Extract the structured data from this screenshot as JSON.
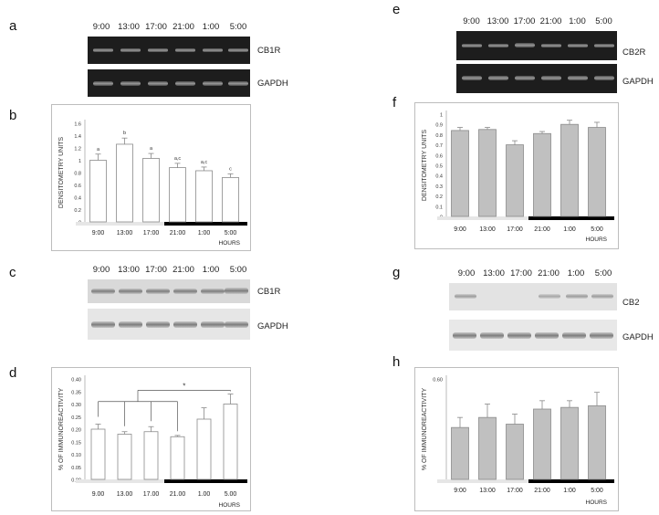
{
  "panels": {
    "a": {
      "letter": "a",
      "times": [
        "9:00",
        "13:00",
        "17:00",
        "21:00",
        "1:00",
        "5:00"
      ],
      "labels": [
        "CB1R",
        "GAPDH"
      ]
    },
    "e": {
      "letter": "e",
      "times": [
        "9:00",
        "13:00",
        "17:00",
        "21:00",
        "1:00",
        "5:00"
      ],
      "labels": [
        "CB2R",
        "GAPDH"
      ]
    },
    "c": {
      "letter": "c",
      "times": [
        "9:00",
        "13:00",
        "17:00",
        "21:00",
        "1:00",
        "5:00"
      ],
      "labels": [
        "CB1R",
        "GAPDH"
      ]
    },
    "g": {
      "letter": "g",
      "times": [
        "9:00",
        "13:00",
        "17:00",
        "21:00",
        "1:00",
        "5:00"
      ],
      "labels": [
        "CB2",
        "GAPDH"
      ]
    },
    "b": {
      "letter": "b"
    },
    "f": {
      "letter": "f"
    },
    "d": {
      "letter": "d"
    },
    "h": {
      "letter": "h"
    }
  },
  "chart_data": [
    {
      "id": "b",
      "type": "bar",
      "categories": [
        "9:00",
        "13:00",
        "17:00",
        "21:00",
        "1:00",
        "5:00"
      ],
      "values": [
        1.0,
        1.26,
        1.03,
        0.88,
        0.83,
        0.72
      ],
      "errors": [
        0.1,
        0.1,
        0.08,
        0.07,
        0.06,
        0.06
      ],
      "annotations": [
        "a",
        "b",
        "a",
        "a,c",
        "a,c",
        "c"
      ],
      "yticks": [
        "0",
        "0.2",
        "0.4",
        "0.6",
        "0.8",
        "1",
        "1.2",
        "1.4",
        "1.6"
      ],
      "ylim": [
        0,
        1.6
      ],
      "ylabel": "DENSITOMETRY UNITS",
      "xlabel": "HOURS",
      "bar_color": "#ffffff"
    },
    {
      "id": "f",
      "type": "bar",
      "categories": [
        "9:00",
        "13:00",
        "17:00",
        "21:00",
        "1:00",
        "5:00"
      ],
      "values": [
        0.84,
        0.85,
        0.7,
        0.81,
        0.9,
        0.87
      ],
      "errors": [
        0.03,
        0.02,
        0.04,
        0.02,
        0.04,
        0.05
      ],
      "annotations": [],
      "yticks": [
        "0",
        "0.1",
        "0.2",
        "0.3",
        "0.4",
        "0.5",
        "0.6",
        "0.7",
        "0.8",
        "0.9",
        "1"
      ],
      "ylim": [
        0,
        1.0
      ],
      "ylabel": "DENSITOMETRY UNITS",
      "xlabel": "HOURS",
      "bar_color": "#c0c0c0"
    },
    {
      "id": "d",
      "type": "bar",
      "categories": [
        "9.00",
        "13.00",
        "17.00",
        "21.00",
        "1.00",
        "5.00"
      ],
      "values": [
        0.2,
        0.18,
        0.19,
        0.17,
        0.24,
        0.3
      ],
      "errors": [
        0.02,
        0.01,
        0.02,
        0.005,
        0.045,
        0.04
      ],
      "annotations": [],
      "significance": "*",
      "yticks": [
        "0.00",
        "0.05",
        "0.10",
        "0.15",
        "0.20",
        "0.25",
        "0.30",
        "0.35",
        "0.40"
      ],
      "ylim": [
        0,
        0.4
      ],
      "ylabel": "% OF IMMUNOREACTIVITY",
      "xlabel": "HOURS",
      "bar_color": "#ffffff"
    },
    {
      "id": "h",
      "type": "bar",
      "categories": [
        "9:00",
        "13:00",
        "17:00",
        "21:00",
        "1:00",
        "5:00"
      ],
      "values": [
        0.31,
        0.37,
        0.33,
        0.42,
        0.43,
        0.44
      ],
      "errors": [
        0.06,
        0.08,
        0.06,
        0.05,
        0.04,
        0.08
      ],
      "annotations": [],
      "yticks": [
        "0.60"
      ],
      "ylim": [
        0,
        0.6
      ],
      "ylabel": "% OF IMMUNOREACTIVITY",
      "xlabel": "HOURS",
      "bar_color": "#c0c0c0"
    }
  ]
}
